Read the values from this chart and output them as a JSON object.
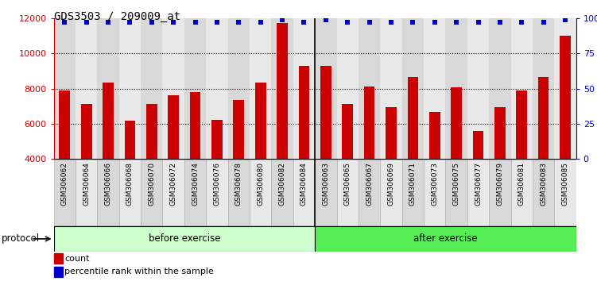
{
  "title": "GDS3503 / 209009_at",
  "categories": [
    "GSM306062",
    "GSM306064",
    "GSM306066",
    "GSM306068",
    "GSM306070",
    "GSM306072",
    "GSM306074",
    "GSM306076",
    "GSM306078",
    "GSM306080",
    "GSM306082",
    "GSM306084",
    "GSM306063",
    "GSM306065",
    "GSM306067",
    "GSM306069",
    "GSM306071",
    "GSM306073",
    "GSM306075",
    "GSM306077",
    "GSM306079",
    "GSM306081",
    "GSM306083",
    "GSM306085"
  ],
  "bar_values": [
    7900,
    7100,
    8350,
    6150,
    7100,
    7600,
    7800,
    6200,
    7350,
    8350,
    11750,
    9300,
    9300,
    7100,
    8100,
    6950,
    8650,
    6650,
    8050,
    5600,
    6950,
    7900,
    8650,
    11000
  ],
  "percentile_values": [
    97,
    97,
    97,
    97,
    97,
    97,
    97,
    97,
    97,
    97,
    99,
    97,
    99,
    97,
    97,
    97,
    97,
    97,
    97,
    97,
    97,
    97,
    97,
    99
  ],
  "bar_color": "#cc0000",
  "percentile_color": "#0000cc",
  "ylim_left": [
    4000,
    12000
  ],
  "ylim_right": [
    0,
    100
  ],
  "yticks_left": [
    4000,
    6000,
    8000,
    10000,
    12000
  ],
  "yticks_right": [
    0,
    25,
    50,
    75,
    100
  ],
  "before_count": 12,
  "after_count": 12,
  "before_label": "before exercise",
  "after_label": "after exercise",
  "before_color": "#ccffcc",
  "after_color": "#55ee55",
  "protocol_label": "protocol",
  "legend_count_label": "count",
  "legend_percentile_label": "percentile rank within the sample",
  "bg_color": "#ffffff",
  "col_bg_even": "#d8d8d8",
  "col_bg_odd": "#e8e8e8",
  "title_fontsize": 10,
  "bar_width": 0.5
}
